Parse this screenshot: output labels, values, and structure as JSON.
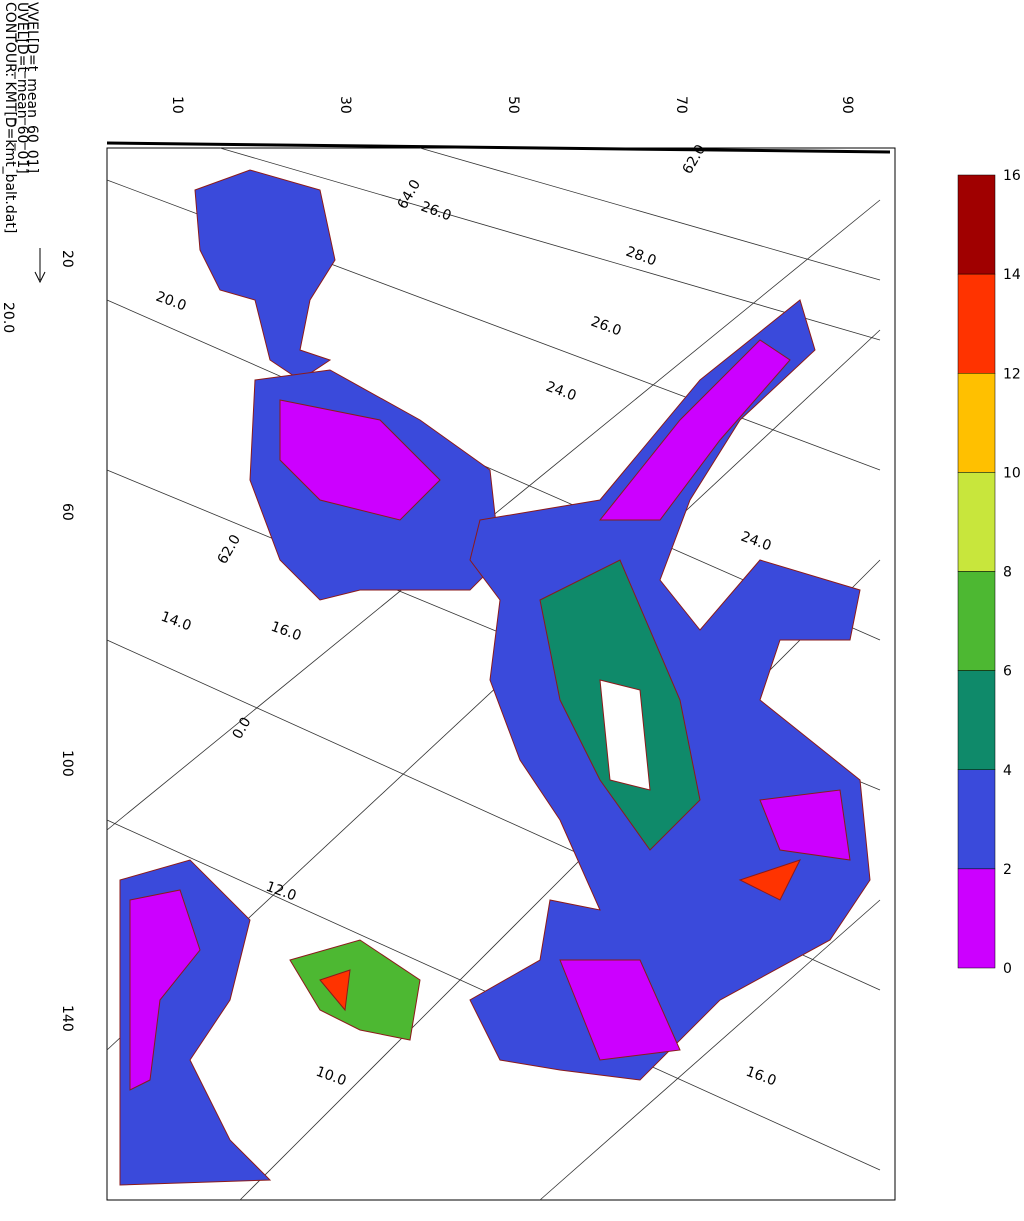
{
  "header": {
    "lines": [
      "CONTOUR: KMT[D=kmt_balt.dat]",
      "UVEL[D=t_mean_60_01]",
      "VVEL[D=t_mean_60_01]"
    ],
    "vector_scale": "20.0"
  },
  "axes": {
    "top": [
      "10",
      "30",
      "50",
      "70",
      "90"
    ],
    "left": [
      "20",
      "60",
      "100",
      "140"
    ]
  },
  "contour_labels": [
    "64.0",
    "26.0",
    "62.0",
    "28.0",
    "26.0",
    "24.0",
    "24.0",
    "20.0",
    "62.0",
    "14.0",
    "16.0",
    "0.0",
    "12.0",
    "10.0",
    "16.0"
  ],
  "colorbar": {
    "labels": [
      "16",
      "14",
      "12",
      "10",
      "8",
      "6",
      "4",
      "2",
      "0"
    ],
    "colors": [
      "#a00000",
      "#ff3300",
      "#ffc000",
      "#c8e63c",
      "#4db832",
      "#0f8a6a",
      "#3a4adb",
      "#cc00ff"
    ]
  }
}
